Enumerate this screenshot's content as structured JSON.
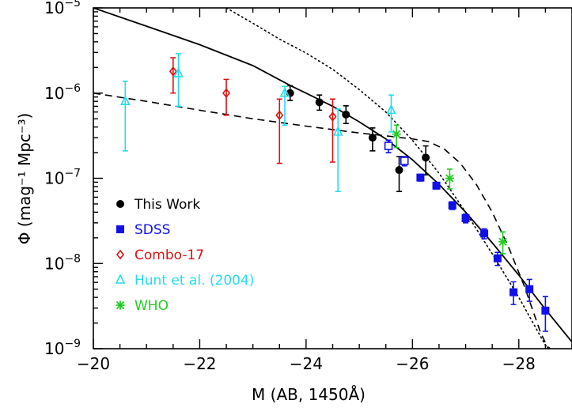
{
  "chart_data": {
    "type": "scatter",
    "title": "",
    "xlabel": "M (AB, 1450Å)",
    "ylabel": "Φ (mag⁻¹ Mpc⁻³)",
    "xlim": [
      -20,
      -29
    ],
    "ylim": [
      1e-09,
      1e-05
    ],
    "yscale": "log",
    "x_ticks": [
      -20,
      -22,
      -24,
      -26,
      -28
    ],
    "x_tick_labels": [
      "−20",
      "−22",
      "−24",
      "−26",
      "−28"
    ],
    "y_ticks": [
      1e-09,
      1e-08,
      1e-07,
      1e-06,
      1e-05
    ],
    "y_tick_labels": [
      {
        "base": "10",
        "exp": "−9"
      },
      {
        "base": "10",
        "exp": "−8"
      },
      {
        "base": "10",
        "exp": "−7"
      },
      {
        "base": "10",
        "exp": "−6"
      },
      {
        "base": "10",
        "exp": "−5"
      }
    ],
    "legend_position": "lower-left",
    "series": [
      {
        "name": "This Work",
        "marker": "filled-circle",
        "color": "#000000",
        "points": [
          {
            "x": -23.7,
            "y": 1e-06,
            "ylo": 8.2e-07,
            "yhi": 1.22e-06
          },
          {
            "x": -24.25,
            "y": 7.8e-07,
            "ylo": 6.3e-07,
            "yhi": 9.5e-07
          },
          {
            "x": -24.75,
            "y": 5.6e-07,
            "ylo": 4.4e-07,
            "yhi": 7.1e-07
          },
          {
            "x": -25.25,
            "y": 3e-07,
            "ylo": 2.1e-07,
            "yhi": 3.9e-07
          },
          {
            "x": -25.75,
            "y": 1.25e-07,
            "ylo": 7e-08,
            "yhi": 1.8e-07
          },
          {
            "x": -26.25,
            "y": 1.75e-07,
            "ylo": 1.1e-07,
            "yhi": 2.4e-07
          }
        ]
      },
      {
        "name": "SDSS",
        "marker": "filled-square",
        "color": "#1010e8",
        "points": [
          {
            "x": -25.55,
            "y": 2.4e-07,
            "ylo": 2e-07,
            "yhi": 2.8e-07,
            "open": true
          },
          {
            "x": -25.85,
            "y": 1.6e-07,
            "ylo": 1.4e-07,
            "yhi": 1.8e-07,
            "open": true
          },
          {
            "x": -26.15,
            "y": 1.02e-07,
            "ylo": 9.3e-08,
            "yhi": 1.11e-07
          },
          {
            "x": -26.45,
            "y": 8.2e-08,
            "ylo": 7.5e-08,
            "yhi": 8.9e-08
          },
          {
            "x": -26.75,
            "y": 4.8e-08,
            "ylo": 4.3e-08,
            "yhi": 5.3e-08
          },
          {
            "x": -27.0,
            "y": 3.4e-08,
            "ylo": 3e-08,
            "yhi": 3.8e-08
          },
          {
            "x": -27.35,
            "y": 2.25e-08,
            "ylo": 1.95e-08,
            "yhi": 2.55e-08
          },
          {
            "x": -27.6,
            "y": 1.15e-08,
            "ylo": 9.5e-09,
            "yhi": 1.35e-08
          },
          {
            "x": -27.9,
            "y": 4.6e-09,
            "ylo": 3.3e-09,
            "yhi": 6.1e-09
          },
          {
            "x": -28.2,
            "y": 5e-09,
            "ylo": 3.6e-09,
            "yhi": 6.5e-09
          },
          {
            "x": -28.5,
            "y": 2.8e-09,
            "ylo": 1.6e-09,
            "yhi": 4.1e-09
          }
        ]
      },
      {
        "name": "Combo-17",
        "marker": "open-diamond",
        "color": "#dd1111",
        "points": [
          {
            "x": -21.5,
            "y": 1.8e-06,
            "ylo": 1e-06,
            "yhi": 2.6e-06
          },
          {
            "x": -22.5,
            "y": 1e-06,
            "ylo": 5.5e-07,
            "yhi": 1.45e-06
          },
          {
            "x": -23.5,
            "y": 5.5e-07,
            "ylo": 1.5e-07,
            "yhi": 8.5e-07
          },
          {
            "x": -24.5,
            "y": 5.3e-07,
            "ylo": 1.55e-07,
            "yhi": 8.5e-07
          }
        ]
      },
      {
        "name": "Hunt et al. (2004)",
        "marker": "open-triangle",
        "color": "#22ddee",
        "points": [
          {
            "x": -20.6,
            "y": 8e-07,
            "ylo": 2.1e-07,
            "yhi": 1.38e-06
          },
          {
            "x": -21.6,
            "y": 1.7e-06,
            "ylo": 7e-07,
            "yhi": 2.9e-06
          },
          {
            "x": -23.6,
            "y": 1e-06,
            "ylo": 4.2e-07,
            "yhi": 1.2e-06
          },
          {
            "x": -24.6,
            "y": 3.5e-07,
            "ylo": 7e-08,
            "yhi": 6.5e-07
          },
          {
            "x": -25.6,
            "y": 6.3e-07,
            "ylo": 3.5e-07,
            "yhi": 9.5e-07
          }
        ]
      },
      {
        "name": "WHO",
        "marker": "asterisk",
        "color": "#22cc22",
        "points": [
          {
            "x": -25.7,
            "y": 3.3e-07,
            "ylo": 2.3e-07,
            "yhi": 4.2e-07
          },
          {
            "x": -26.7,
            "y": 1e-07,
            "ylo": 7.5e-08,
            "yhi": 1.28e-07
          },
          {
            "x": -27.7,
            "y": 1.8e-08,
            "ylo": 1.3e-08,
            "yhi": 2.35e-08
          }
        ]
      }
    ],
    "curves": [
      {
        "style": "solid",
        "points": [
          [
            -20,
            1e-05
          ],
          [
            -21,
            6.1e-06
          ],
          [
            -22,
            3.7e-06
          ],
          [
            -23,
            2.1e-06
          ],
          [
            -23.7,
            1.23e-06
          ],
          [
            -24,
            1e-06
          ],
          [
            -24.5,
            7e-07
          ],
          [
            -25,
            4.6e-07
          ],
          [
            -25.5,
            2.9e-07
          ],
          [
            -26,
            1.65e-07
          ],
          [
            -26.5,
            8.5e-08
          ],
          [
            -27,
            4e-08
          ],
          [
            -27.5,
            1.75e-08
          ],
          [
            -28,
            7.3e-09
          ],
          [
            -28.5,
            2.9e-09
          ],
          [
            -29,
            1.2e-09
          ]
        ]
      },
      {
        "style": "dashed",
        "points": [
          [
            -20,
            1e-06
          ],
          [
            -21,
            8e-07
          ],
          [
            -22,
            6.3e-07
          ],
          [
            -23,
            5e-07
          ],
          [
            -24,
            4.1e-07
          ],
          [
            -25,
            3.4e-07
          ],
          [
            -25.5,
            3.15e-07
          ],
          [
            -26,
            2.9e-07
          ],
          [
            -26.3,
            2.7e-07
          ],
          [
            -26.6,
            2.2e-07
          ],
          [
            -26.9,
            1.5e-07
          ],
          [
            -27.2,
            8.5e-08
          ],
          [
            -27.5,
            4e-08
          ],
          [
            -27.8,
            1.6e-08
          ],
          [
            -28.1,
            5.5e-09
          ],
          [
            -28.4,
            1.6e-09
          ],
          [
            -28.55,
            1e-09
          ]
        ]
      },
      {
        "style": "dotted",
        "points": [
          [
            -22.5,
            1e-05
          ],
          [
            -23,
            6.6e-06
          ],
          [
            -23.5,
            4.3e-06
          ],
          [
            -24,
            2.95e-06
          ],
          [
            -24.5,
            1.9e-06
          ],
          [
            -25,
            1.1e-06
          ],
          [
            -25.5,
            6e-07
          ],
          [
            -26,
            2.8e-07
          ],
          [
            -26.5,
            1.15e-07
          ],
          [
            -27,
            4e-08
          ],
          [
            -27.5,
            1.3e-08
          ],
          [
            -28,
            4e-09
          ],
          [
            -28.5,
            1.1e-09
          ],
          [
            -28.6,
            1e-09
          ]
        ]
      }
    ]
  }
}
